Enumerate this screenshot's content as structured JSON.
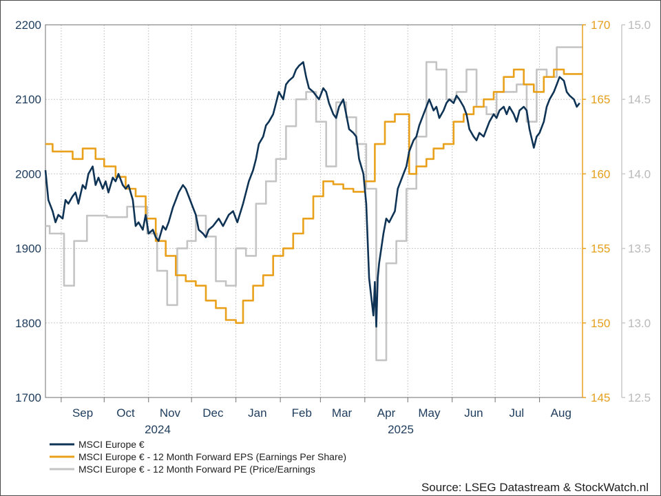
{
  "chart_data": {
    "type": "line",
    "source_label": "Source: LSEG Datastream & StockWatch.nl",
    "colors": {
      "msci": "#0e3355",
      "eps": "#e9a11b",
      "pe": "#c4c4c4"
    },
    "x_ticks": [
      "Sep",
      "Oct",
      "Nov",
      "Dec",
      "Jan",
      "Feb",
      "Mar",
      "Apr",
      "May",
      "Jun",
      "Jul",
      "Aug"
    ],
    "x_year_labels": [
      "2024",
      "2025"
    ],
    "y_left": {
      "min": 1700,
      "max": 2200,
      "ticks": [
        "2200",
        "2100",
        "2000",
        "1900",
        "1800",
        "1700"
      ]
    },
    "y_eps": {
      "min": 145,
      "max": 170,
      "ticks": [
        "170",
        "165",
        "160",
        "155",
        "150",
        "145"
      ]
    },
    "y_pe": {
      "min": 12.5,
      "max": 15.0,
      "ticks": [
        "15.0",
        "14.5",
        "14.0",
        "13.5",
        "13.0",
        "12.5"
      ]
    },
    "x_range": [
      "2024-08-21",
      "2025-08-31"
    ],
    "legend": [
      "MSCI Europe €",
      "MSCI Europe € - 12 Month Forward EPS (Earnings Per Share)",
      "MSCI Europe € - 12 Month Forward PE (Price/Earnings"
    ],
    "series": [
      {
        "name": "MSCI Europe €",
        "axis": "left",
        "step": false,
        "points": [
          [
            "2024-08-21",
            2005
          ],
          [
            "2024-08-23",
            1965
          ],
          [
            "2024-08-26",
            1950
          ],
          [
            "2024-08-28",
            1935
          ],
          [
            "2024-08-30",
            1945
          ],
          [
            "2024-09-02",
            1940
          ],
          [
            "2024-09-04",
            1965
          ],
          [
            "2024-09-06",
            1960
          ],
          [
            "2024-09-09",
            1970
          ],
          [
            "2024-09-11",
            1975
          ],
          [
            "2024-09-13",
            1960
          ],
          [
            "2024-09-16",
            1985
          ],
          [
            "2024-09-18",
            1980
          ],
          [
            "2024-09-20",
            2000
          ],
          [
            "2024-09-23",
            2010
          ],
          [
            "2024-09-25",
            1985
          ],
          [
            "2024-09-27",
            1995
          ],
          [
            "2024-09-30",
            1980
          ],
          [
            "2024-10-02",
            1990
          ],
          [
            "2024-10-04",
            1975
          ],
          [
            "2024-10-07",
            1995
          ],
          [
            "2024-10-09",
            1990
          ],
          [
            "2024-10-11",
            2000
          ],
          [
            "2024-10-14",
            1985
          ],
          [
            "2024-10-16",
            1980
          ],
          [
            "2024-10-18",
            1985
          ],
          [
            "2024-10-21",
            1965
          ],
          [
            "2024-10-23",
            1930
          ],
          [
            "2024-10-25",
            1935
          ],
          [
            "2024-10-28",
            1925
          ],
          [
            "2024-10-30",
            1945
          ],
          [
            "2024-11-01",
            1920
          ],
          [
            "2024-11-04",
            1925
          ],
          [
            "2024-11-06",
            1915
          ],
          [
            "2024-11-08",
            1910
          ],
          [
            "2024-11-11",
            1930
          ],
          [
            "2024-11-13",
            1925
          ],
          [
            "2024-11-15",
            1935
          ],
          [
            "2024-11-18",
            1955
          ],
          [
            "2024-11-20",
            1965
          ],
          [
            "2024-11-22",
            1975
          ],
          [
            "2024-11-25",
            1985
          ],
          [
            "2024-11-27",
            1980
          ],
          [
            "2024-11-29",
            1970
          ],
          [
            "2024-12-02",
            1955
          ],
          [
            "2024-12-04",
            1945
          ],
          [
            "2024-12-06",
            1925
          ],
          [
            "2024-12-09",
            1920
          ],
          [
            "2024-12-11",
            1915
          ],
          [
            "2024-12-13",
            1925
          ],
          [
            "2024-12-16",
            1930
          ],
          [
            "2024-12-18",
            1935
          ],
          [
            "2024-12-20",
            1940
          ],
          [
            "2024-12-23",
            1930
          ],
          [
            "2024-12-27",
            1945
          ],
          [
            "2024-12-30",
            1950
          ],
          [
            "2025-01-02",
            1935
          ],
          [
            "2025-01-06",
            1960
          ],
          [
            "2025-01-08",
            1975
          ],
          [
            "2025-01-10",
            1990
          ],
          [
            "2025-01-13",
            2005
          ],
          [
            "2025-01-15",
            2020
          ],
          [
            "2025-01-17",
            2040
          ],
          [
            "2025-01-20",
            2050
          ],
          [
            "2025-01-22",
            2065
          ],
          [
            "2025-01-24",
            2070
          ],
          [
            "2025-01-27",
            2080
          ],
          [
            "2025-01-29",
            2095
          ],
          [
            "2025-01-31",
            2110
          ],
          [
            "2025-02-03",
            2100
          ],
          [
            "2025-02-05",
            2120
          ],
          [
            "2025-02-07",
            2125
          ],
          [
            "2025-02-10",
            2130
          ],
          [
            "2025-02-12",
            2140
          ],
          [
            "2025-02-14",
            2145
          ],
          [
            "2025-02-17",
            2150
          ],
          [
            "2025-02-19",
            2130
          ],
          [
            "2025-02-21",
            2115
          ],
          [
            "2025-02-24",
            2110
          ],
          [
            "2025-02-26",
            2105
          ],
          [
            "2025-02-28",
            2100
          ],
          [
            "2025-03-03",
            2115
          ],
          [
            "2025-03-05",
            2110
          ],
          [
            "2025-03-07",
            2095
          ],
          [
            "2025-03-10",
            2080
          ],
          [
            "2025-03-12",
            2075
          ],
          [
            "2025-03-14",
            2090
          ],
          [
            "2025-03-17",
            2100
          ],
          [
            "2025-03-19",
            2080
          ],
          [
            "2025-03-21",
            2060
          ],
          [
            "2025-03-24",
            2055
          ],
          [
            "2025-03-26",
            2050
          ],
          [
            "2025-03-28",
            2020
          ],
          [
            "2025-03-31",
            2000
          ],
          [
            "2025-04-02",
            1960
          ],
          [
            "2025-04-04",
            1860
          ],
          [
            "2025-04-07",
            1810
          ],
          [
            "2025-04-08",
            1855
          ],
          [
            "2025-04-09",
            1795
          ],
          [
            "2025-04-10",
            1860
          ],
          [
            "2025-04-11",
            1880
          ],
          [
            "2025-04-14",
            1920
          ],
          [
            "2025-04-16",
            1940
          ],
          [
            "2025-04-18",
            1935
          ],
          [
            "2025-04-22",
            1950
          ],
          [
            "2025-04-24",
            1980
          ],
          [
            "2025-04-28",
            2000
          ],
          [
            "2025-04-30",
            2010
          ],
          [
            "2025-05-02",
            2030
          ],
          [
            "2025-05-05",
            2045
          ],
          [
            "2025-05-07",
            2050
          ],
          [
            "2025-05-09",
            2065
          ],
          [
            "2025-05-12",
            2080
          ],
          [
            "2025-05-14",
            2090
          ],
          [
            "2025-05-16",
            2100
          ],
          [
            "2025-05-19",
            2085
          ],
          [
            "2025-05-21",
            2090
          ],
          [
            "2025-05-23",
            2075
          ],
          [
            "2025-05-26",
            2085
          ],
          [
            "2025-05-28",
            2095
          ],
          [
            "2025-05-30",
            2100
          ],
          [
            "2025-06-02",
            2095
          ],
          [
            "2025-06-04",
            2105
          ],
          [
            "2025-06-06",
            2100
          ],
          [
            "2025-06-09",
            2090
          ],
          [
            "2025-06-11",
            2080
          ],
          [
            "2025-06-13",
            2060
          ],
          [
            "2025-06-16",
            2050
          ],
          [
            "2025-06-18",
            2045
          ],
          [
            "2025-06-20",
            2055
          ],
          [
            "2025-06-23",
            2050
          ],
          [
            "2025-06-25",
            2060
          ],
          [
            "2025-06-27",
            2070
          ],
          [
            "2025-06-30",
            2080
          ],
          [
            "2025-07-02",
            2075
          ],
          [
            "2025-07-04",
            2085
          ],
          [
            "2025-07-07",
            2090
          ],
          [
            "2025-07-09",
            2080
          ],
          [
            "2025-07-11",
            2090
          ],
          [
            "2025-07-14",
            2080
          ],
          [
            "2025-07-16",
            2070
          ],
          [
            "2025-07-18",
            2085
          ],
          [
            "2025-07-21",
            2090
          ],
          [
            "2025-07-23",
            2085
          ],
          [
            "2025-07-25",
            2060
          ],
          [
            "2025-07-28",
            2035
          ],
          [
            "2025-07-30",
            2050
          ],
          [
            "2025-08-01",
            2055
          ],
          [
            "2025-08-04",
            2070
          ],
          [
            "2025-08-06",
            2090
          ],
          [
            "2025-08-08",
            2100
          ],
          [
            "2025-08-11",
            2110
          ],
          [
            "2025-08-13",
            2120
          ],
          [
            "2025-08-15",
            2130
          ],
          [
            "2025-08-18",
            2125
          ],
          [
            "2025-08-20",
            2110
          ],
          [
            "2025-08-22",
            2105
          ],
          [
            "2025-08-25",
            2100
          ],
          [
            "2025-08-27",
            2090
          ],
          [
            "2025-08-29",
            2095
          ]
        ]
      },
      {
        "name": "MSCI Europe € - 12 Month Forward EPS (Earnings Per Share)",
        "axis": "eps",
        "step": true,
        "points": [
          [
            "2024-08-21",
            162.0
          ],
          [
            "2024-08-26",
            161.5
          ],
          [
            "2024-09-09",
            161.0
          ],
          [
            "2024-09-16",
            161.7
          ],
          [
            "2024-09-25",
            161.0
          ],
          [
            "2024-10-01",
            160.5
          ],
          [
            "2024-10-09",
            159.8
          ],
          [
            "2024-10-16",
            159.0
          ],
          [
            "2024-10-23",
            158.5
          ],
          [
            "2024-10-30",
            157.0
          ],
          [
            "2024-11-06",
            155.5
          ],
          [
            "2024-11-13",
            154.5
          ],
          [
            "2024-11-20",
            153.2
          ],
          [
            "2024-11-27",
            152.8
          ],
          [
            "2024-12-04",
            152.5
          ],
          [
            "2024-12-11",
            151.5
          ],
          [
            "2024-12-18",
            151.0
          ],
          [
            "2024-12-25",
            150.2
          ],
          [
            "2025-01-01",
            150.0
          ],
          [
            "2025-01-06",
            151.5
          ],
          [
            "2025-01-13",
            152.5
          ],
          [
            "2025-01-20",
            153.2
          ],
          [
            "2025-01-27",
            154.5
          ],
          [
            "2025-02-03",
            155.0
          ],
          [
            "2025-02-10",
            156.0
          ],
          [
            "2025-02-17",
            157.0
          ],
          [
            "2025-02-24",
            158.5
          ],
          [
            "2025-03-03",
            159.5
          ],
          [
            "2025-03-10",
            159.3
          ],
          [
            "2025-03-17",
            159.0
          ],
          [
            "2025-03-24",
            158.8
          ],
          [
            "2025-04-01",
            159.5
          ],
          [
            "2025-04-08",
            162.0
          ],
          [
            "2025-04-15",
            163.5
          ],
          [
            "2025-04-22",
            164.0
          ],
          [
            "2025-05-02",
            160.0
          ],
          [
            "2025-05-07",
            160.5
          ],
          [
            "2025-05-14",
            161.0
          ],
          [
            "2025-05-19",
            161.7
          ],
          [
            "2025-05-26",
            162.0
          ],
          [
            "2025-06-02",
            163.5
          ],
          [
            "2025-06-09",
            164.0
          ],
          [
            "2025-06-16",
            164.5
          ],
          [
            "2025-06-23",
            165.0
          ],
          [
            "2025-06-30",
            165.5
          ],
          [
            "2025-07-07",
            166.5
          ],
          [
            "2025-07-14",
            167.0
          ],
          [
            "2025-07-21",
            166.0
          ],
          [
            "2025-07-28",
            165.5
          ],
          [
            "2025-08-04",
            166.5
          ],
          [
            "2025-08-11",
            167.0
          ],
          [
            "2025-08-18",
            166.7
          ],
          [
            "2025-08-25",
            166.7
          ],
          [
            "2025-08-31",
            166.7
          ]
        ]
      },
      {
        "name": "MSCI Europe € - 12 Month Forward PE (Price/Earnings",
        "axis": "pe",
        "step": true,
        "points": [
          [
            "2024-08-21",
            13.65
          ],
          [
            "2024-08-24",
            13.6
          ],
          [
            "2024-09-03",
            13.25
          ],
          [
            "2024-09-10",
            13.55
          ],
          [
            "2024-09-19",
            13.72
          ],
          [
            "2024-09-26",
            13.72
          ],
          [
            "2024-10-03",
            13.71
          ],
          [
            "2024-10-17",
            13.78
          ],
          [
            "2024-10-24",
            13.78
          ],
          [
            "2024-10-31",
            13.6
          ],
          [
            "2024-11-07",
            13.35
          ],
          [
            "2024-11-14",
            13.12
          ],
          [
            "2024-11-21",
            13.5
          ],
          [
            "2024-11-28",
            13.55
          ],
          [
            "2024-12-04",
            13.72
          ],
          [
            "2024-12-11",
            13.58
          ],
          [
            "2024-12-18",
            13.28
          ],
          [
            "2024-12-25",
            13.25
          ],
          [
            "2025-01-01",
            13.5
          ],
          [
            "2025-01-08",
            13.45
          ],
          [
            "2025-01-15",
            13.8
          ],
          [
            "2025-01-22",
            13.95
          ],
          [
            "2025-01-29",
            14.1
          ],
          [
            "2025-02-05",
            14.32
          ],
          [
            "2025-02-12",
            14.5
          ],
          [
            "2025-02-19",
            14.55
          ],
          [
            "2025-02-26",
            14.35
          ],
          [
            "2025-03-05",
            14.05
          ],
          [
            "2025-03-12",
            14.48
          ],
          [
            "2025-03-19",
            14.38
          ],
          [
            "2025-03-26",
            14.2
          ],
          [
            "2025-04-02",
            13.9
          ],
          [
            "2025-04-09",
            12.75
          ],
          [
            "2025-04-16",
            13.4
          ],
          [
            "2025-04-23",
            13.55
          ],
          [
            "2025-04-30",
            13.9
          ],
          [
            "2025-05-07",
            14.25
          ],
          [
            "2025-05-14",
            14.75
          ],
          [
            "2025-05-21",
            14.7
          ],
          [
            "2025-05-28",
            14.5
          ],
          [
            "2025-06-04",
            14.55
          ],
          [
            "2025-06-11",
            14.7
          ],
          [
            "2025-06-18",
            14.45
          ],
          [
            "2025-06-25",
            14.4
          ],
          [
            "2025-07-02",
            14.55
          ],
          [
            "2025-07-09",
            14.55
          ],
          [
            "2025-07-16",
            14.6
          ],
          [
            "2025-07-23",
            14.35
          ],
          [
            "2025-07-30",
            14.7
          ],
          [
            "2025-08-06",
            14.65
          ],
          [
            "2025-08-13",
            14.85
          ],
          [
            "2025-08-20",
            14.85
          ],
          [
            "2025-08-31",
            14.85
          ]
        ]
      }
    ]
  }
}
